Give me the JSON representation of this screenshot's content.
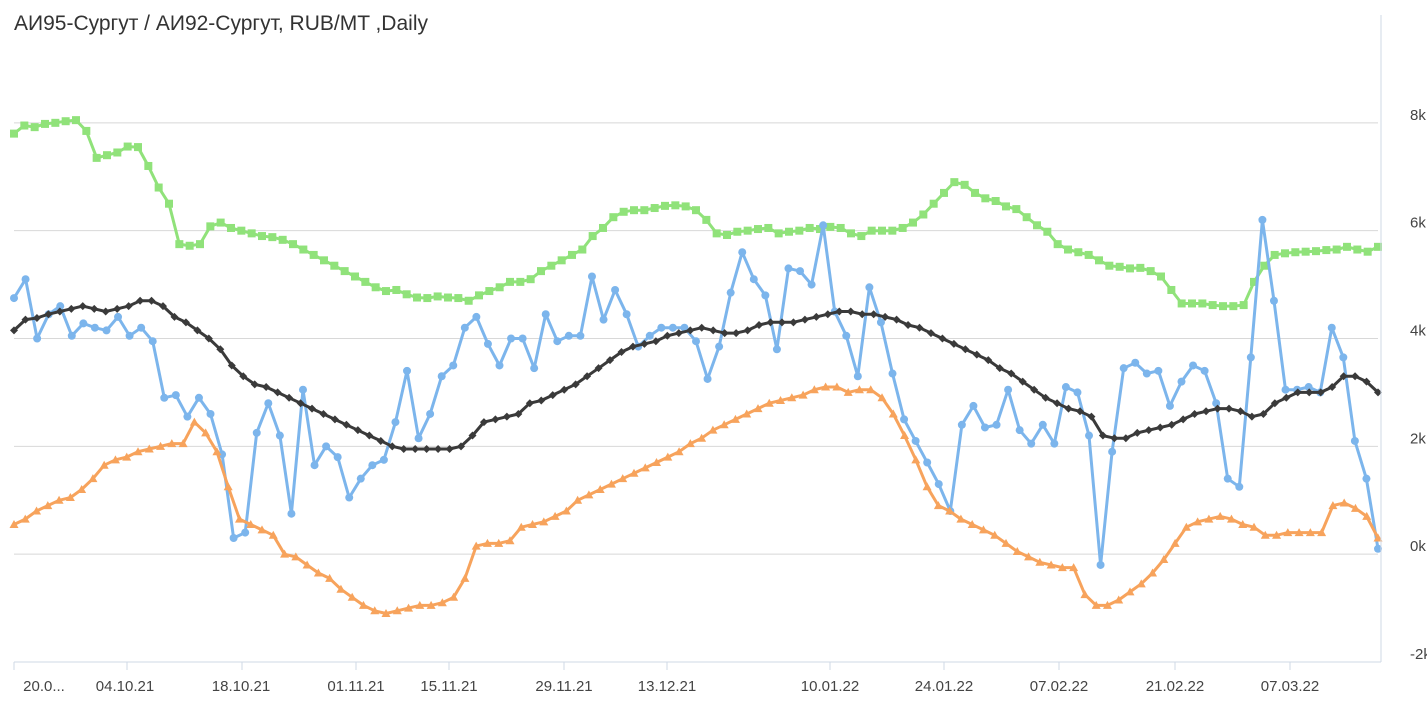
{
  "chart_data": {
    "type": "line",
    "title": "АИ95-Сургут / АИ92-Сургут, RUB/MT ,Daily",
    "x_ticks": [
      "20.0...",
      "04.10.21",
      "18.10.21",
      "01.11.21",
      "15.11.21",
      "29.11.21",
      "13.12.21",
      "10.01.22",
      "24.01.22",
      "07.02.22",
      "21.02.22",
      "07.03.22"
    ],
    "y_ticks": [
      "8k",
      "6k",
      "4k",
      "2k",
      "0k",
      "-2k"
    ],
    "y_axis_position": "right",
    "ylim": [
      -2000,
      10000
    ],
    "grid": true,
    "legend": "none",
    "series": [
      {
        "color": "#90e27a",
        "marker": "square",
        "values": [
          7800,
          7950,
          7920,
          7980,
          8000,
          8030,
          8050,
          7850,
          7350,
          7400,
          7450,
          7560,
          7550,
          7200,
          6800,
          6500,
          5750,
          5720,
          5750,
          6080,
          6150,
          6050,
          6000,
          5950,
          5900,
          5880,
          5830,
          5750,
          5650,
          5550,
          5450,
          5350,
          5250,
          5150,
          5050,
          4950,
          4880,
          4900,
          4820,
          4760,
          4750,
          4780,
          4760,
          4750,
          4700,
          4800,
          4880,
          4950,
          5050,
          5050,
          5100,
          5250,
          5350,
          5450,
          5550,
          5650,
          5900,
          6050,
          6250,
          6350,
          6380,
          6380,
          6420,
          6460,
          6470,
          6450,
          6380,
          6200,
          5950,
          5920,
          5980,
          6000,
          6030,
          6050,
          5950,
          5980,
          6000,
          6050,
          6030,
          6070,
          6050,
          5950,
          5900,
          6000,
          6000,
          6000,
          6050,
          6150,
          6300,
          6500,
          6700,
          6900,
          6850,
          6700,
          6600,
          6550,
          6450,
          6400,
          6250,
          6100,
          5980,
          5750,
          5650,
          5600,
          5550,
          5450,
          5350,
          5330,
          5300,
          5310,
          5250,
          5150,
          4900,
          4650,
          4650,
          4650,
          4620,
          4600,
          4600,
          4620,
          5050,
          5350,
          5550,
          5580,
          5600,
          5610,
          5620,
          5640,
          5650,
          5700,
          5650,
          5610,
          5700
        ]
      },
      {
        "color": "#7cb5ec",
        "marker": "circle",
        "values": [
          4750,
          5100,
          4000,
          4450,
          4600,
          4050,
          4280,
          4200,
          4150,
          4400,
          4050,
          4200,
          3950,
          2900,
          2950,
          2550,
          2900,
          2600,
          1850,
          300,
          400,
          2250,
          2800,
          2200,
          750,
          3050,
          1650,
          2000,
          1800,
          1050,
          1400,
          1650,
          1750,
          2450,
          3400,
          2150,
          2600,
          3300,
          3500,
          4200,
          4400,
          3900,
          3500,
          4000,
          4000,
          3450,
          4450,
          3950,
          4050,
          4050,
          5150,
          4350,
          4900,
          4450,
          3850,
          4050,
          4200,
          4200,
          4200,
          3950,
          3250,
          3850,
          4850,
          5600,
          5100,
          4800,
          3800,
          5300,
          5250,
          5000,
          6100,
          4500,
          4050,
          3300,
          4950,
          4300,
          3350,
          2500,
          2100,
          1700,
          1300,
          800,
          2400,
          2750,
          2350,
          2400,
          3050,
          2300,
          2050,
          2400,
          2050,
          3100,
          3000,
          2200,
          -200,
          1900,
          3450,
          3550,
          3350,
          3400,
          2750,
          3200,
          3500,
          3400,
          2800,
          1400,
          1250,
          3650,
          6200,
          4700,
          3050,
          3050,
          3100,
          3000,
          4200,
          3650,
          2100,
          1400,
          100
        ]
      },
      {
        "color": "#f7a35c",
        "marker": "triangle",
        "values": [
          550,
          650,
          800,
          900,
          1000,
          1050,
          1200,
          1400,
          1650,
          1750,
          1800,
          1900,
          1950,
          2000,
          2050,
          2050,
          2450,
          2250,
          1900,
          1250,
          650,
          550,
          450,
          350,
          0,
          -50,
          -200,
          -350,
          -450,
          -650,
          -800,
          -950,
          -1050,
          -1100,
          -1050,
          -1000,
          -950,
          -950,
          -900,
          -800,
          -450,
          150,
          200,
          200,
          250,
          500,
          550,
          600,
          700,
          800,
          1000,
          1100,
          1200,
          1300,
          1400,
          1500,
          1600,
          1700,
          1800,
          1900,
          2050,
          2150,
          2300,
          2400,
          2500,
          2600,
          2700,
          2800,
          2850,
          2900,
          2950,
          3050,
          3100,
          3100,
          3000,
          3050,
          3050,
          2900,
          2600,
          2200,
          1750,
          1250,
          900,
          800,
          650,
          550,
          450,
          350,
          200,
          50,
          -50,
          -150,
          -200,
          -250,
          -250,
          -750,
          -950,
          -950,
          -850,
          -700,
          -550,
          -350,
          -100,
          200,
          500,
          600,
          650,
          700,
          650,
          550,
          500,
          350,
          350,
          400,
          400,
          400,
          400,
          900,
          950,
          850,
          700,
          300
        ]
      },
      {
        "color": "#3a3a3a",
        "marker": "diamond",
        "values": [
          4150,
          4350,
          4380,
          4450,
          4500,
          4550,
          4600,
          4550,
          4500,
          4550,
          4600,
          4700,
          4700,
          4600,
          4400,
          4300,
          4150,
          4000,
          3800,
          3500,
          3300,
          3150,
          3100,
          3000,
          2900,
          2800,
          2700,
          2600,
          2500,
          2400,
          2300,
          2200,
          2100,
          2000,
          1950,
          1950,
          1950,
          1950,
          1950,
          2000,
          2200,
          2450,
          2500,
          2550,
          2600,
          2800,
          2850,
          2950,
          3050,
          3150,
          3300,
          3450,
          3600,
          3750,
          3850,
          3900,
          3950,
          4050,
          4100,
          4150,
          4200,
          4150,
          4100,
          4100,
          4150,
          4250,
          4300,
          4300,
          4300,
          4350,
          4400,
          4450,
          4500,
          4500,
          4450,
          4450,
          4400,
          4350,
          4250,
          4200,
          4100,
          4000,
          3900,
          3800,
          3700,
          3600,
          3450,
          3350,
          3200,
          3050,
          2900,
          2800,
          2700,
          2650,
          2550,
          2200,
          2150,
          2150,
          2250,
          2300,
          2350,
          2400,
          2500,
          2600,
          2650,
          2700,
          2700,
          2650,
          2550,
          2600,
          2800,
          2900,
          3000,
          3000,
          3000,
          3100,
          3300,
          3300,
          3200,
          3000
        ]
      }
    ]
  }
}
